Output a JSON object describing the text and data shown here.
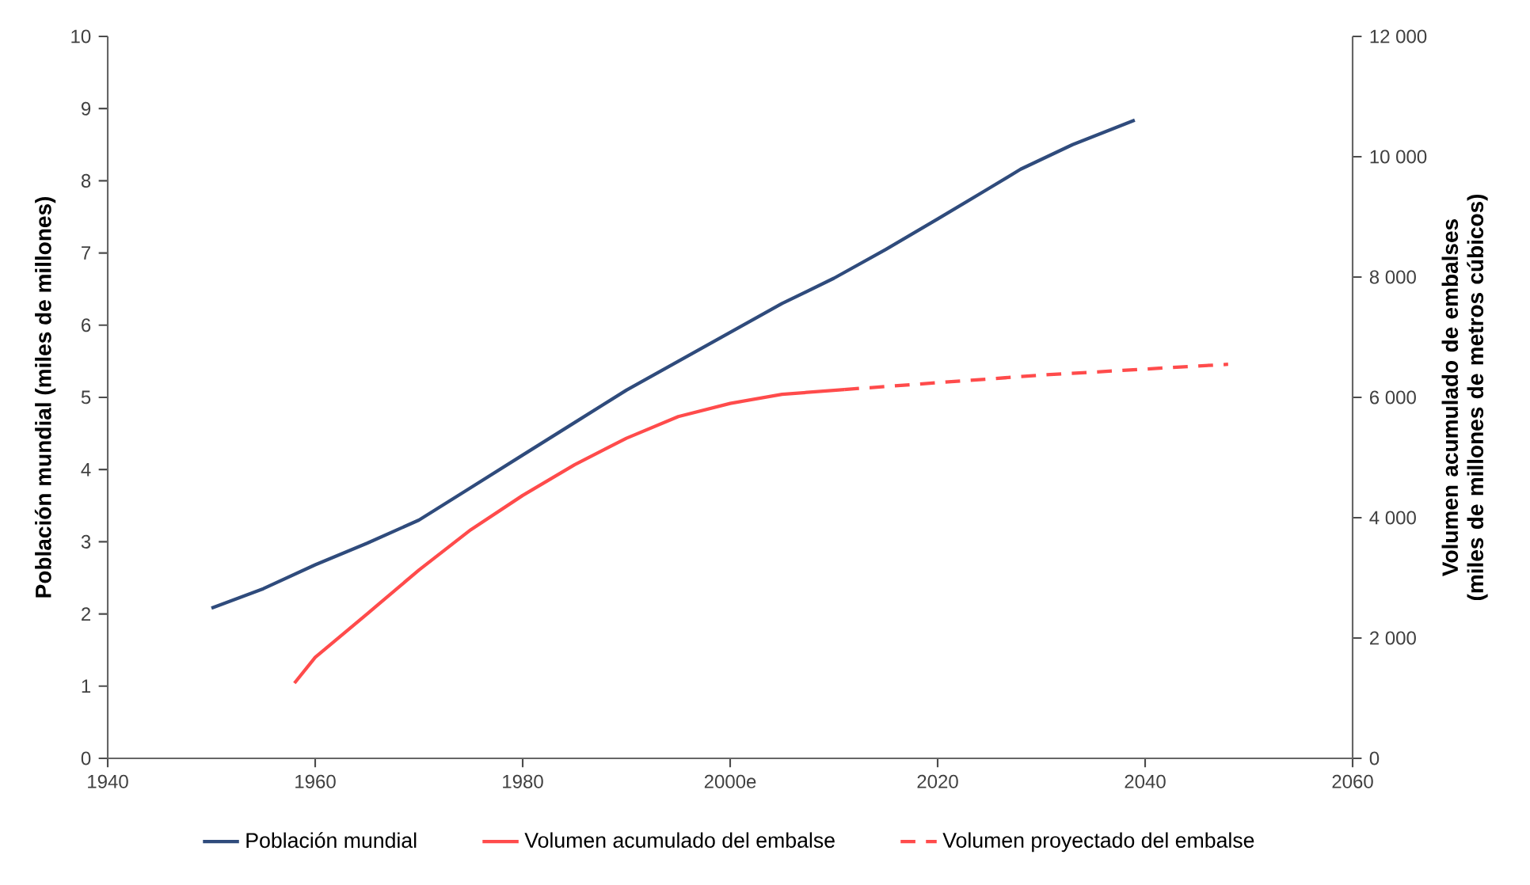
{
  "chart_data": {
    "type": "line",
    "ylabel": "Población mundial (miles de millones)",
    "y2label": "Volumen acumulado de embalses (miles de millones de metros cúbicos)",
    "xlim": [
      1940,
      2060
    ],
    "xticks": [
      1940,
      1960,
      1980,
      {
        "value": 2000,
        "label": "2000e"
      },
      2020,
      2040,
      2060
    ],
    "ylim": [
      0,
      10
    ],
    "yticks": [
      0,
      1,
      2,
      3,
      4,
      5,
      6,
      7,
      8,
      9,
      10
    ],
    "y2lim": [
      0,
      12000
    ],
    "y2ticks": [
      {
        "value": 0,
        "label": "0"
      },
      {
        "value": 2000,
        "label": "2 000"
      },
      {
        "value": 4000,
        "label": "4 000"
      },
      {
        "value": 6000,
        "label": "6 000"
      },
      {
        "value": 8000,
        "label": "8 000"
      },
      {
        "value": 10000,
        "label": "10 000"
      },
      {
        "value": 12000,
        "label": "12 000"
      }
    ],
    "legend": "bottom",
    "grid": false,
    "series": [
      {
        "name": "Población mundial",
        "color": "#2f4b7c",
        "line_style": "solid",
        "x": [
          1950,
          1955,
          1960,
          1965,
          1970,
          1975,
          1980,
          1985,
          1990,
          1995,
          2000,
          2005,
          2010,
          2015,
          2020,
          2025,
          2028,
          2033,
          2039
        ],
        "values": [
          2.08,
          2.35,
          2.68,
          2.98,
          3.3,
          3.75,
          4.2,
          4.65,
          5.1,
          5.5,
          5.9,
          6.3,
          6.65,
          7.05,
          7.47,
          7.9,
          8.16,
          8.5,
          8.84
        ]
      },
      {
        "name": "Volumen acumulado del embalse",
        "color": "#ff4b4b",
        "line_style": "solid",
        "axis": "y2",
        "x": [
          1958,
          1960,
          1965,
          1970,
          1975,
          1980,
          1985,
          1990,
          1995,
          2000,
          2005,
          2011
        ],
        "values": [
          1250,
          1680,
          2400,
          3130,
          3800,
          4370,
          4880,
          5320,
          5680,
          5900,
          6050,
          6130
        ]
      },
      {
        "name": "Volumen proyectado del embalse",
        "color": "#ff4b4b",
        "line_style": "dashed",
        "axis": "y2",
        "x": [
          2011,
          2030,
          2048
        ],
        "values": [
          6130,
          6370,
          6550
        ]
      }
    ]
  }
}
